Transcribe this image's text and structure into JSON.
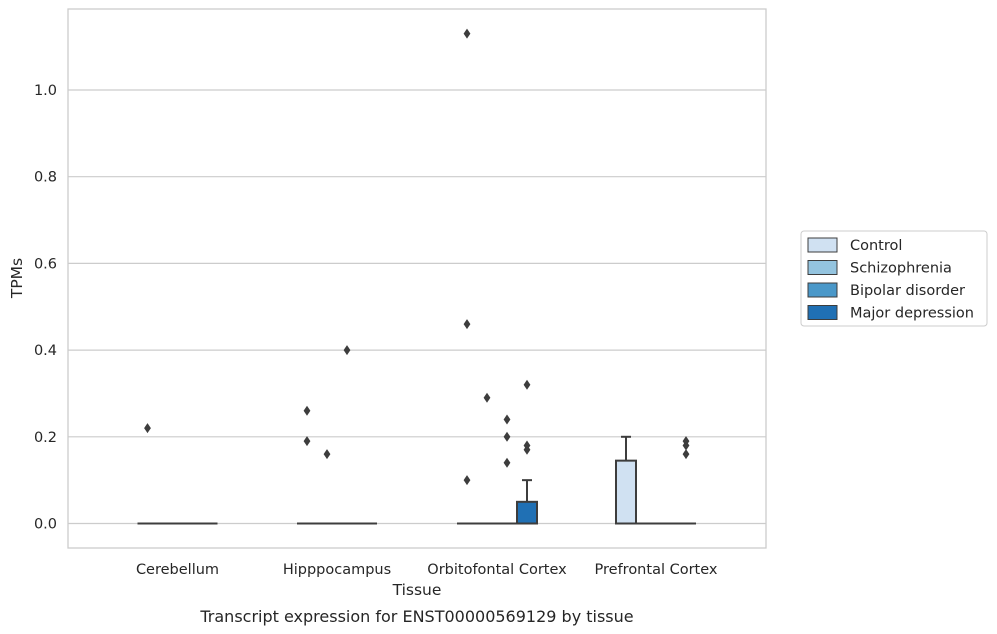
{
  "chart_data": {
    "type": "box",
    "caption": "Transcript expression for ENST00000569129 by tissue",
    "xlabel": "Tissue",
    "ylabel": "TPMs",
    "ylim": [
      -0.055,
      1.19
    ],
    "yticks": [
      "0.0",
      "0.2",
      "0.4",
      "0.6",
      "0.8",
      "1.0"
    ],
    "grid": "horizontal",
    "legend_placement": "right",
    "categories": [
      "Cerebellum",
      "Hipppocampus",
      "Orbitofontal Cortex",
      "Prefrontal Cortex"
    ],
    "series": [
      {
        "name": "Control",
        "color": "#d0e1f2",
        "boxes": [
          {
            "category": "Cerebellum",
            "q1": 0,
            "median": 0,
            "q3": 0,
            "whisker_low": 0,
            "whisker_high": 0,
            "outliers": [
              0.22
            ]
          },
          {
            "category": "Hipppocampus",
            "q1": 0,
            "median": 0,
            "q3": 0,
            "whisker_low": 0,
            "whisker_high": 0,
            "outliers": [
              0.19,
              0.26
            ]
          },
          {
            "category": "Orbitofontal Cortex",
            "q1": 0,
            "median": 0,
            "q3": 0,
            "whisker_low": 0,
            "whisker_high": 0,
            "outliers": [
              0.1,
              0.46,
              1.13
            ]
          },
          {
            "category": "Prefrontal Cortex",
            "q1": 0,
            "median": 0,
            "q3": 0.145,
            "whisker_low": 0,
            "whisker_high": 0.2,
            "outliers": []
          }
        ]
      },
      {
        "name": "Schizophrenia",
        "color": "#94c4df",
        "boxes": [
          {
            "category": "Cerebellum",
            "q1": 0,
            "median": 0,
            "q3": 0,
            "whisker_low": 0,
            "whisker_high": 0,
            "outliers": []
          },
          {
            "category": "Hipppocampus",
            "q1": 0,
            "median": 0,
            "q3": 0,
            "whisker_low": 0,
            "whisker_high": 0,
            "outliers": [
              0.16
            ]
          },
          {
            "category": "Orbitofontal Cortex",
            "q1": 0,
            "median": 0,
            "q3": 0,
            "whisker_low": 0,
            "whisker_high": 0,
            "outliers": [
              0.29
            ]
          },
          {
            "category": "Prefrontal Cortex",
            "q1": 0,
            "median": 0,
            "q3": 0,
            "whisker_low": 0,
            "whisker_high": 0,
            "outliers": []
          }
        ]
      },
      {
        "name": "Bipolar disorder",
        "color": "#4a98c9",
        "boxes": [
          {
            "category": "Cerebellum",
            "q1": 0,
            "median": 0,
            "q3": 0,
            "whisker_low": 0,
            "whisker_high": 0,
            "outliers": []
          },
          {
            "category": "Hipppocampus",
            "q1": 0,
            "median": 0,
            "q3": 0,
            "whisker_low": 0,
            "whisker_high": 0,
            "outliers": [
              0.4
            ]
          },
          {
            "category": "Orbitofontal Cortex",
            "q1": 0,
            "median": 0,
            "q3": 0,
            "whisker_low": 0,
            "whisker_high": 0,
            "outliers": [
              0.14,
              0.2,
              0.24
            ]
          },
          {
            "category": "Prefrontal Cortex",
            "q1": 0,
            "median": 0,
            "q3": 0,
            "whisker_low": 0,
            "whisker_high": 0,
            "outliers": []
          }
        ]
      },
      {
        "name": "Major depression",
        "color": "#2070b4",
        "boxes": [
          {
            "category": "Cerebellum",
            "q1": 0,
            "median": 0,
            "q3": 0,
            "whisker_low": 0,
            "whisker_high": 0,
            "outliers": []
          },
          {
            "category": "Hipppocampus",
            "q1": 0,
            "median": 0,
            "q3": 0,
            "whisker_low": 0,
            "whisker_high": 0,
            "outliers": []
          },
          {
            "category": "Orbitofontal Cortex",
            "q1": 0,
            "median": 0,
            "q3": 0.05,
            "whisker_low": 0,
            "whisker_high": 0.1,
            "outliers": [
              0.17,
              0.18,
              0.32
            ]
          },
          {
            "category": "Prefrontal Cortex",
            "q1": 0,
            "median": 0,
            "q3": 0,
            "whisker_low": 0,
            "whisker_high": 0,
            "outliers": [
              0.16,
              0.18,
              0.19
            ]
          }
        ]
      }
    ]
  }
}
